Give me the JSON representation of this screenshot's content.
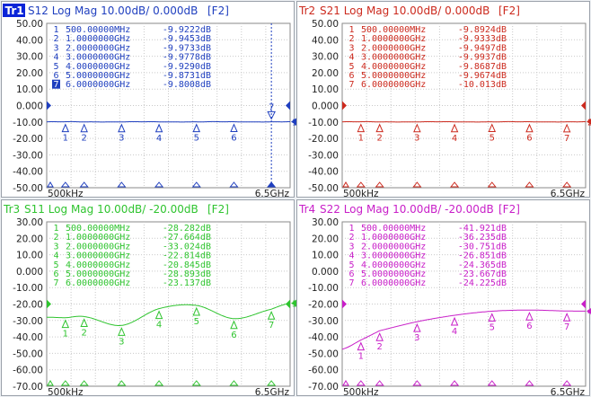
{
  "colors": {
    "frame": "#9aa1aa",
    "grid": "#c9c9c9",
    "panel_bg": "#ffffff",
    "window_bg": "#eef1f4",
    "active_badge_bg": "#0a24d8",
    "active_badge_fg": "#ffffff"
  },
  "panels": [
    {
      "id": "tr1",
      "badge": "Tr1",
      "title": "S12 Log Mag 10.00dB/ 0.000dB",
      "label": "[F2]",
      "color": "#1f3fbf",
      "active": true,
      "y_ticks": [
        "50.00",
        "40.00",
        "30.00",
        "20.00",
        "10.00",
        "0.000",
        "-10.00",
        "-20.00",
        "-30.00",
        "-40.00",
        "-50.00"
      ],
      "y_range": [
        -50,
        50
      ],
      "ref_level": 0,
      "x_start": "500kHz",
      "x_stop": "6.5GHz",
      "trace_number": "1",
      "markers": [
        {
          "n": "1",
          "freq": "500.00000MHz",
          "val": "-9.9222dB",
          "y": -9.92
        },
        {
          "n": "2",
          "freq": "1.0000000GHz",
          "val": "-9.9453dB",
          "y": -9.95
        },
        {
          "n": "3",
          "freq": "2.0000000GHz",
          "val": "-9.9733dB",
          "y": -9.97
        },
        {
          "n": "4",
          "freq": "3.0000000GHz",
          "val": "-9.9778dB",
          "y": -9.98
        },
        {
          "n": "5",
          "freq": "4.0000000GHz",
          "val": "-9.9290dB",
          "y": -9.93
        },
        {
          "n": "6",
          "freq": "5.0000000GHz",
          "val": "-9.8731dB",
          "y": -9.87
        },
        {
          "n": "7",
          "freq": "6.0000000GHz",
          "val": "-9.8008dB",
          "y": -9.8
        }
      ],
      "selected_marker": "7"
    },
    {
      "id": "tr2",
      "badge": "Tr2",
      "title": "S21 Log Mag 10.00dB/ 0.000dB",
      "label": "[F2]",
      "color": "#cc2a1e",
      "active": false,
      "y_ticks": [
        "50.00",
        "40.00",
        "30.00",
        "20.00",
        "10.00",
        "0.000",
        "-10.00",
        "-20.00",
        "-30.00",
        "-40.00",
        "-50.00"
      ],
      "y_range": [
        -50,
        50
      ],
      "ref_level": 0,
      "x_start": "500kHz",
      "x_stop": "6.5GHz",
      "trace_number": "2",
      "markers": [
        {
          "n": "1",
          "freq": "500.00000MHz",
          "val": "-9.8924dB",
          "y": -9.89
        },
        {
          "n": "2",
          "freq": "1.0000000GHz",
          "val": "-9.9333dB",
          "y": -9.93
        },
        {
          "n": "3",
          "freq": "2.0000000GHz",
          "val": "-9.9497dB",
          "y": -9.95
        },
        {
          "n": "4",
          "freq": "3.0000000GHz",
          "val": "-9.9937dB",
          "y": -9.99
        },
        {
          "n": "5",
          "freq": "4.0000000GHz",
          "val": "-9.8687dB",
          "y": -9.87
        },
        {
          "n": "6",
          "freq": "5.0000000GHz",
          "val": "-9.9674dB",
          "y": -9.97
        },
        {
          "n": "7",
          "freq": "6.0000000GHz",
          "val": "-10.013dB",
          "y": -10.01
        }
      ],
      "selected_marker": ""
    },
    {
      "id": "tr3",
      "badge": "Tr3",
      "title": "S11 Log Mag 10.00dB/ -20.00dB",
      "label": "[F2]",
      "color": "#2fc42f",
      "active": false,
      "y_ticks": [
        "30.00",
        "20.00",
        "10.00",
        "0.000",
        "-10.00",
        "-20.00",
        "-30.00",
        "-40.00",
        "-50.00",
        "-60.00",
        "-70.00"
      ],
      "y_range": [
        -70,
        30
      ],
      "ref_level": -20,
      "x_start": "500kHz",
      "x_stop": "6.5GHz",
      "trace_number": "3",
      "markers": [
        {
          "n": "1",
          "freq": "500.00000MHz",
          "val": "-28.282dB",
          "y": -28.28
        },
        {
          "n": "2",
          "freq": "1.0000000GHz",
          "val": "-27.664dB",
          "y": -27.66
        },
        {
          "n": "3",
          "freq": "2.0000000GHz",
          "val": "-33.024dB",
          "y": -33.02
        },
        {
          "n": "4",
          "freq": "3.0000000GHz",
          "val": "-22.814dB",
          "y": -22.81
        },
        {
          "n": "5",
          "freq": "4.0000000GHz",
          "val": "-20.845dB",
          "y": -20.85
        },
        {
          "n": "6",
          "freq": "5.0000000GHz",
          "val": "-28.893dB",
          "y": -28.89
        },
        {
          "n": "7",
          "freq": "6.0000000GHz",
          "val": "-23.137dB",
          "y": -23.14
        }
      ],
      "selected_marker": ""
    },
    {
      "id": "tr4",
      "badge": "Tr4",
      "title": "S22 Log Mag 10.00dB/ -20.00dB",
      "label": "[F2]",
      "color": "#c81ec8",
      "active": false,
      "y_ticks": [
        "30.00",
        "20.00",
        "10.00",
        "0.000",
        "-10.00",
        "-20.00",
        "-30.00",
        "-40.00",
        "-50.00",
        "-60.00",
        "-70.00"
      ],
      "y_range": [
        -70,
        30
      ],
      "ref_level": -20,
      "x_start": "500kHz",
      "x_stop": "6.5GHz",
      "trace_number": "4",
      "markers": [
        {
          "n": "1",
          "freq": "500.00000MHz",
          "val": "-41.921dB",
          "y": -41.92
        },
        {
          "n": "2",
          "freq": "1.0000000GHz",
          "val": "-36.235dB",
          "y": -36.24
        },
        {
          "n": "3",
          "freq": "2.0000000GHz",
          "val": "-30.751dB",
          "y": -30.75
        },
        {
          "n": "4",
          "freq": "3.0000000GHz",
          "val": "-26.851dB",
          "y": -26.85
        },
        {
          "n": "5",
          "freq": "4.0000000GHz",
          "val": "-24.365dB",
          "y": -24.37
        },
        {
          "n": "6",
          "freq": "5.0000000GHz",
          "val": "-23.667dB",
          "y": -23.67
        },
        {
          "n": "7",
          "freq": "6.0000000GHz",
          "val": "-24.225dB",
          "y": -24.23
        }
      ],
      "selected_marker": ""
    }
  ]
}
